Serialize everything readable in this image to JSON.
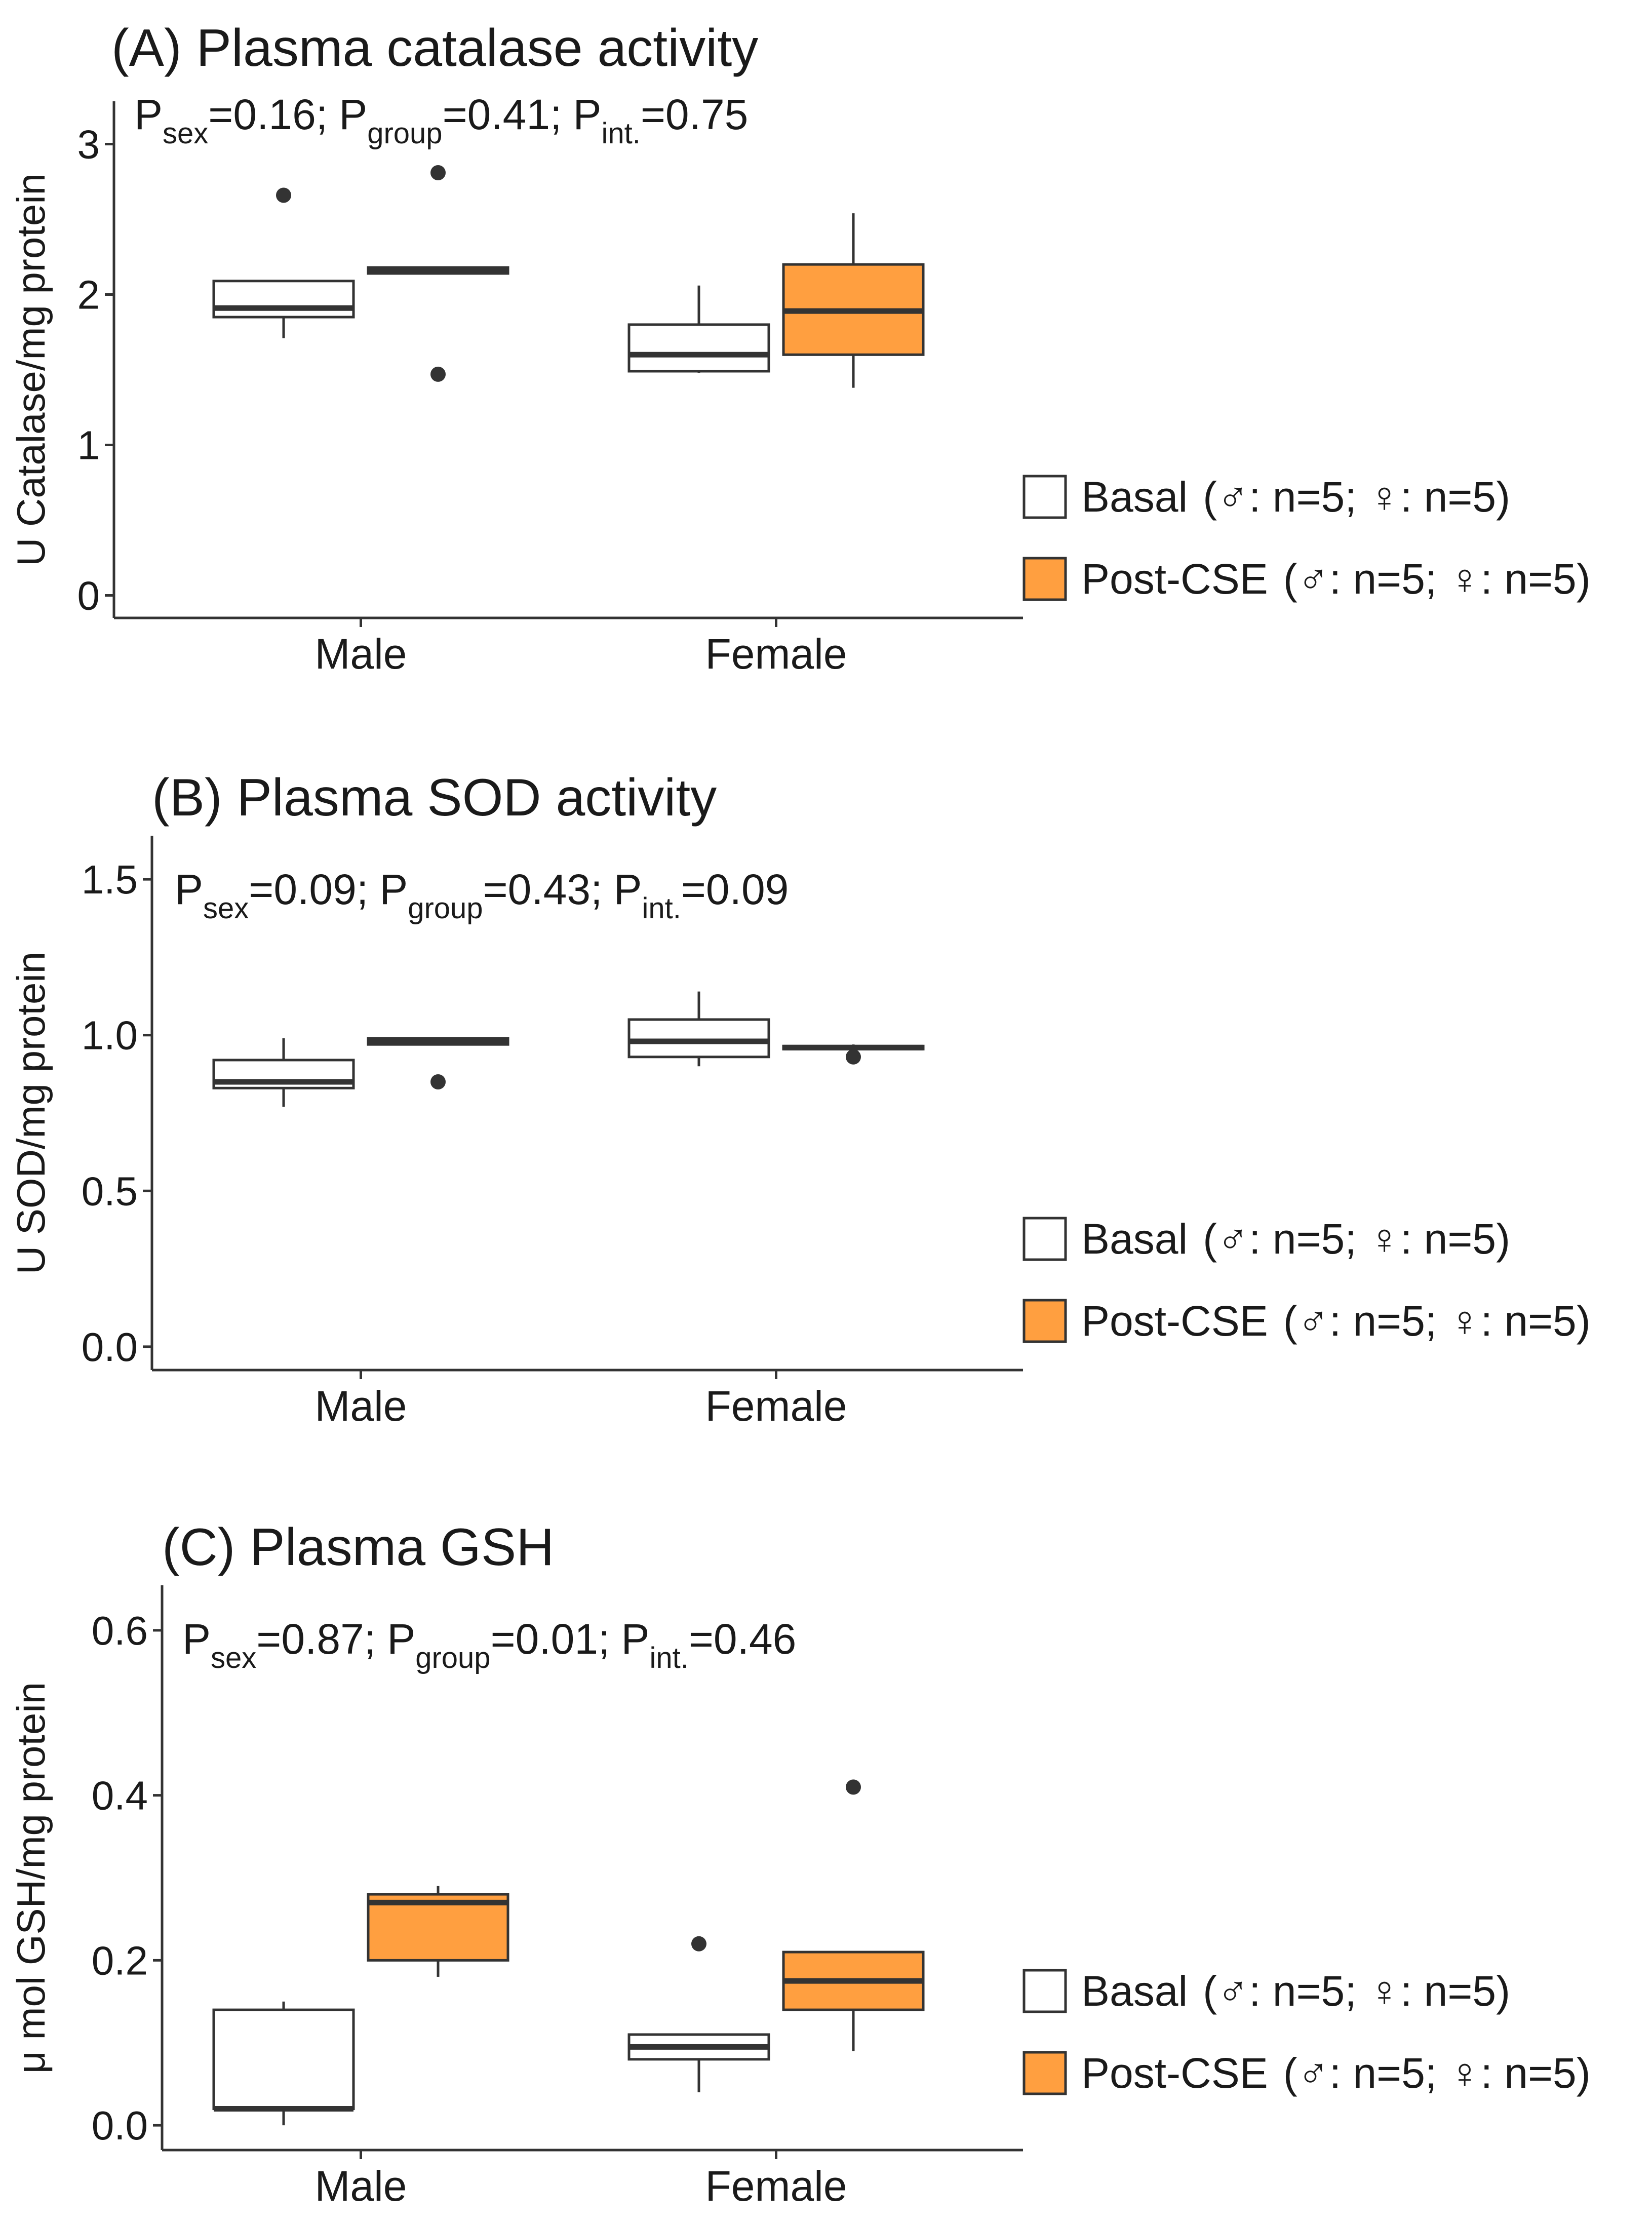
{
  "colors": {
    "basal": "#ffffff",
    "post": "#FF9F40",
    "outline": "#333333",
    "axis": "#333333",
    "text": "#1a1a1a"
  },
  "chart_data": [
    {
      "type": "boxplot",
      "title": "(A) Plasma catalase activity",
      "ylabel": "U Catalase/mg protein",
      "xlabel": "",
      "ylim": [
        -0.15,
        3.15
      ],
      "yticks": [
        0,
        1,
        2,
        3
      ],
      "ytick_labels": [
        "0",
        "1",
        "2",
        "3"
      ],
      "categories": [
        "Male",
        "Female"
      ],
      "pvalues": [
        {
          "name": "P",
          "sub": "sex",
          "value": "=0.16;"
        },
        {
          "name": "P",
          "sub": "group",
          "value": "=0.41;"
        },
        {
          "name": "P",
          "sub": "int.",
          "value": "=0.75"
        }
      ],
      "legend": [
        {
          "label": "Basal",
          "detail": "(♂: n=5; ♀: n=5)"
        },
        {
          "label": "Post-CSE",
          "detail": "(♂: n=5; ♀: n=5)"
        }
      ],
      "series": [
        {
          "name": "Basal",
          "boxes": [
            {
              "category": "Male",
              "lower": 1.71,
              "q1": 1.85,
              "median": 1.91,
              "q3": 2.09,
              "upper": 2.09,
              "outliers": [
                2.66
              ]
            },
            {
              "category": "Female",
              "lower": 1.48,
              "q1": 1.49,
              "median": 1.6,
              "q3": 1.8,
              "upper": 2.06,
              "outliers": []
            }
          ]
        },
        {
          "name": "Post-CSE",
          "boxes": [
            {
              "category": "Male",
              "lower": 2.14,
              "q1": 2.14,
              "median": 2.16,
              "q3": 2.18,
              "upper": 2.18,
              "outliers": [
                2.81,
                1.47
              ]
            },
            {
              "category": "Female",
              "lower": 1.38,
              "q1": 1.6,
              "median": 1.89,
              "q3": 2.2,
              "upper": 2.54,
              "outliers": []
            }
          ]
        }
      ]
    },
    {
      "type": "boxplot",
      "title": "(B) Plasma SOD activity",
      "ylabel": "U SOD/mg protein",
      "xlabel": "",
      "ylim": [
        -0.075,
        1.575
      ],
      "yticks": [
        0,
        0.5,
        1.0,
        1.5
      ],
      "ytick_labels": [
        "0.0",
        "0.5",
        "1.0",
        "1.5"
      ],
      "categories": [
        "Male",
        "Female"
      ],
      "pvalues": [
        {
          "name": "P",
          "sub": "sex",
          "value": "=0.09;"
        },
        {
          "name": "P",
          "sub": "group",
          "value": "=0.43;"
        },
        {
          "name": "P",
          "sub": "int.",
          "value": "=0.09"
        }
      ],
      "legend": [
        {
          "label": "Basal",
          "detail": "(♂: n=5; ♀: n=5)"
        },
        {
          "label": "Post-CSE",
          "detail": "(♂: n=5; ♀: n=5)"
        }
      ],
      "series": [
        {
          "name": "Basal",
          "boxes": [
            {
              "category": "Male",
              "lower": 0.77,
              "q1": 0.83,
              "median": 0.85,
              "q3": 0.92,
              "upper": 0.99,
              "outliers": []
            },
            {
              "category": "Female",
              "lower": 0.9,
              "q1": 0.93,
              "median": 0.98,
              "q3": 1.05,
              "upper": 1.14,
              "outliers": []
            }
          ]
        },
        {
          "name": "Post-CSE",
          "boxes": [
            {
              "category": "Male",
              "lower": 0.97,
              "q1": 0.97,
              "median": 0.98,
              "q3": 0.99,
              "upper": 0.99,
              "outliers": [
                0.85
              ]
            },
            {
              "category": "Female",
              "lower": 0.95,
              "q1": 0.955,
              "median": 0.96,
              "q3": 0.965,
              "upper": 0.97,
              "outliers": [
                0.93
              ]
            }
          ]
        }
      ]
    },
    {
      "type": "boxplot",
      "title": "(C) Plasma GSH",
      "ylabel": "μ mol GSH/mg protein",
      "xlabel": "",
      "ylim": [
        -0.03,
        0.63
      ],
      "yticks": [
        0,
        0.2,
        0.4,
        0.6
      ],
      "ytick_labels": [
        "0.0",
        "0.2",
        "0.4",
        "0.6"
      ],
      "categories": [
        "Male",
        "Female"
      ],
      "pvalues": [
        {
          "name": "P",
          "sub": "sex",
          "value": "=0.87;"
        },
        {
          "name": "P",
          "sub": "group",
          "value": "=0.01;"
        },
        {
          "name": "P",
          "sub": "int.",
          "value": "=0.46"
        }
      ],
      "legend": [
        {
          "label": "Basal",
          "detail": "(♂: n=5; ♀: n=5)"
        },
        {
          "label": "Post-CSE",
          "detail": "(♂: n=5; ♀: n=5)"
        }
      ],
      "series": [
        {
          "name": "Basal",
          "boxes": [
            {
              "category": "Male",
              "lower": 0.0,
              "q1": 0.02,
              "median": 0.02,
              "q3": 0.14,
              "upper": 0.15,
              "outliers": []
            },
            {
              "category": "Female",
              "lower": 0.04,
              "q1": 0.08,
              "median": 0.095,
              "q3": 0.11,
              "upper": 0.11,
              "outliers": [
                0.22
              ]
            }
          ]
        },
        {
          "name": "Post-CSE",
          "boxes": [
            {
              "category": "Male",
              "lower": 0.18,
              "q1": 0.2,
              "median": 0.27,
              "q3": 0.28,
              "upper": 0.29,
              "outliers": []
            },
            {
              "category": "Female",
              "lower": 0.09,
              "q1": 0.14,
              "median": 0.175,
              "q3": 0.21,
              "upper": 0.21,
              "outliers": [
                0.41
              ]
            }
          ]
        }
      ]
    }
  ]
}
